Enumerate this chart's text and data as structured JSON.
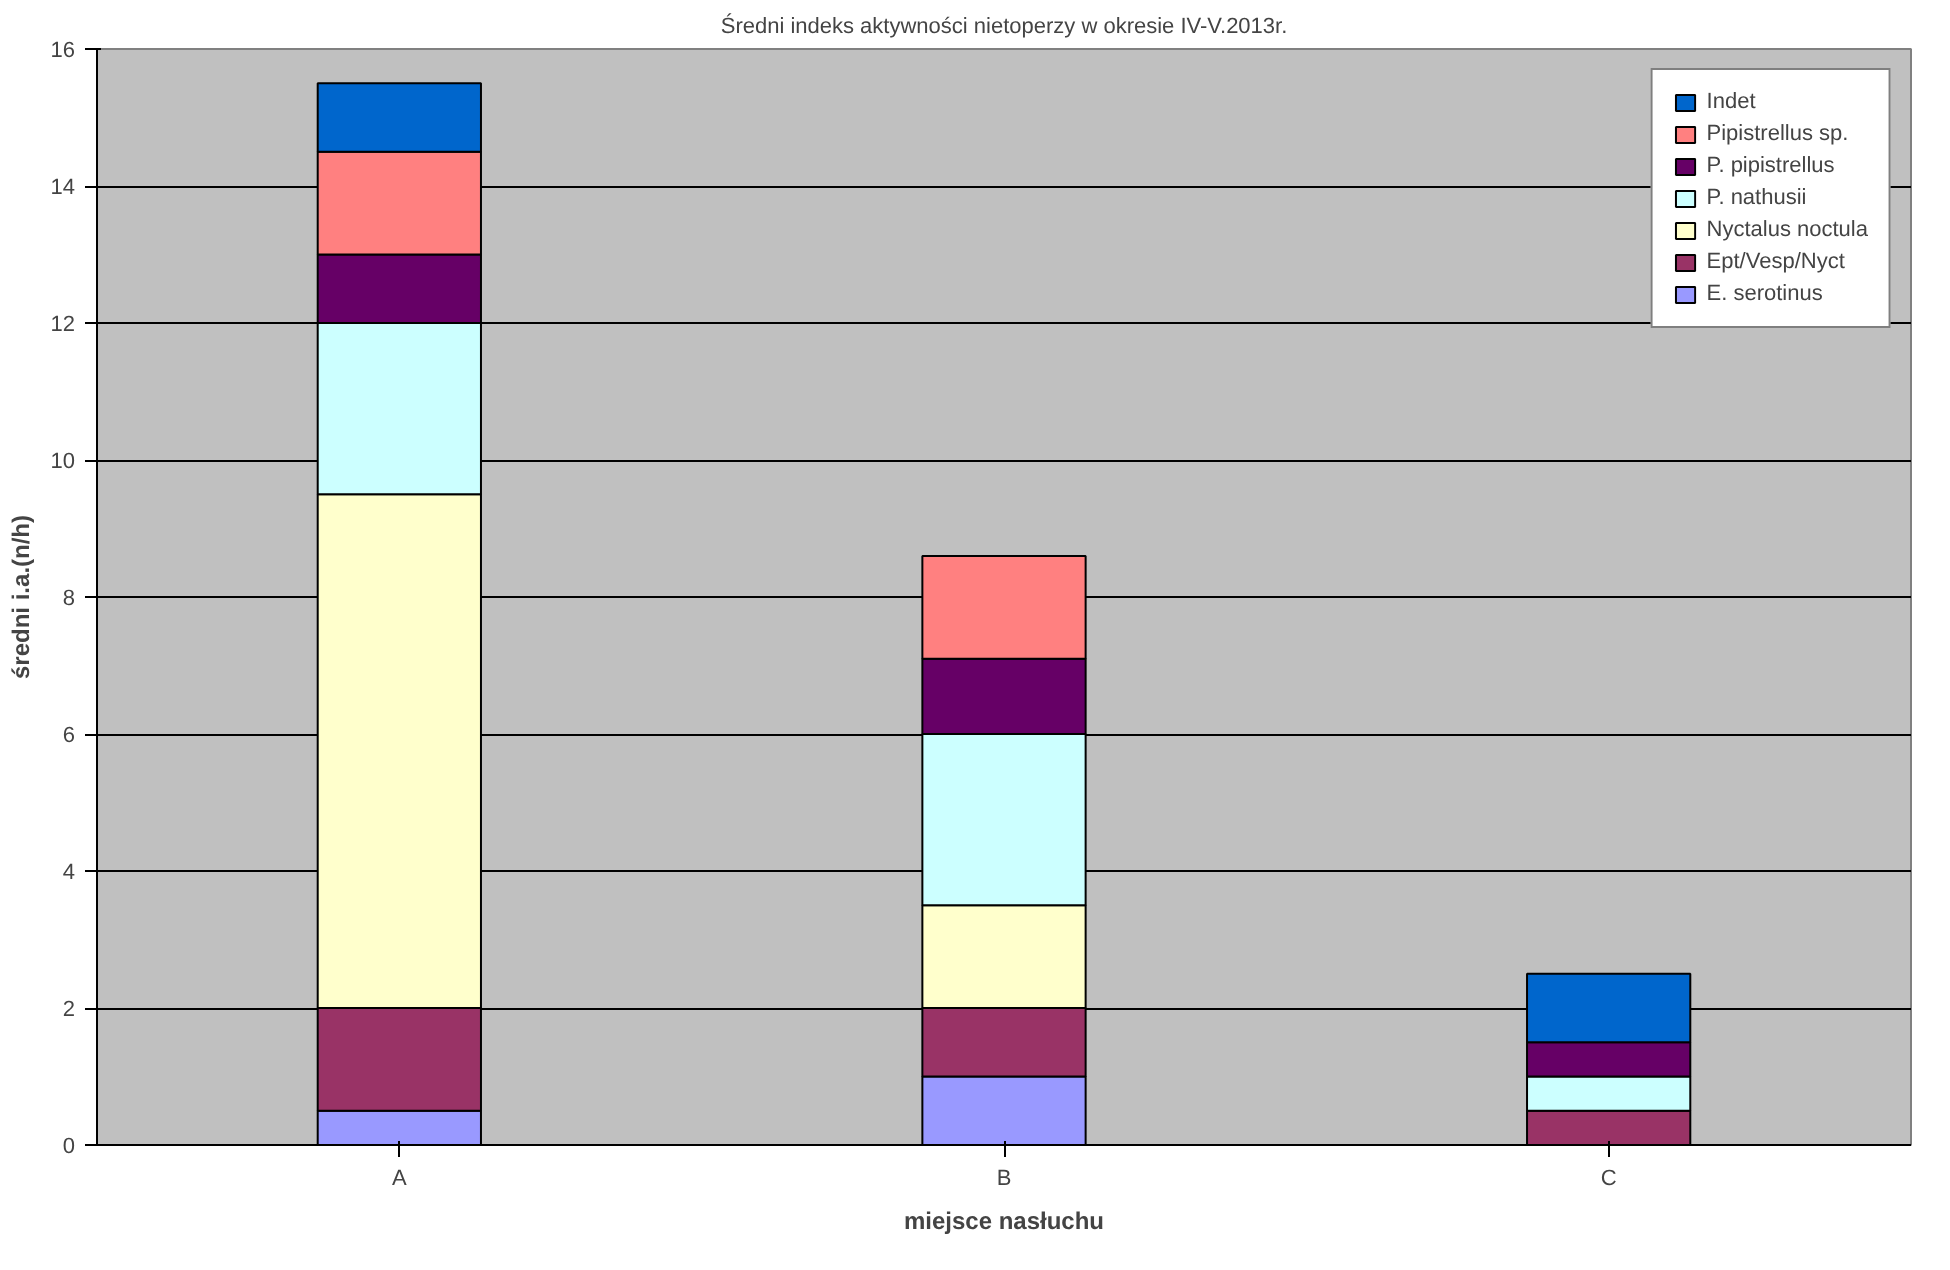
{
  "chart_data": {
    "type": "bar",
    "stacked": true,
    "title": "Średni indeks aktywności nietoperzy w okresie IV-V.2013r.",
    "xlabel": "miejsce nasłuchu",
    "ylabel": "średni i.a.(n/h)",
    "categories": [
      "A",
      "B",
      "C"
    ],
    "series": [
      {
        "name": "E. serotinus",
        "color": "#9999ff",
        "values": [
          0.5,
          1,
          0
        ]
      },
      {
        "name": "Ept/Vesp/Nyct",
        "color": "#993366",
        "values": [
          1.5,
          1,
          0.5
        ]
      },
      {
        "name": "Nyctalus noctula",
        "color": "#ffffcc",
        "values": [
          7.5,
          1.5,
          0
        ]
      },
      {
        "name": "P. nathusii",
        "color": "#ccffff",
        "values": [
          2.5,
          2.5,
          0.5
        ]
      },
      {
        "name": "P. pipistrellus",
        "color": "#660066",
        "values": [
          1,
          1.1,
          0.5
        ]
      },
      {
        "name": "Pipistrellus sp.",
        "color": "#ff8080",
        "values": [
          1.5,
          1.5,
          0
        ]
      },
      {
        "name": "Indet",
        "color": "#0066cc",
        "values": [
          1,
          0,
          1
        ]
      }
    ],
    "ylim": [
      0,
      16
    ],
    "yticks": [
      0,
      2,
      4,
      6,
      8,
      10,
      12,
      14,
      16
    ],
    "grid": "y",
    "legend": "top right"
  }
}
